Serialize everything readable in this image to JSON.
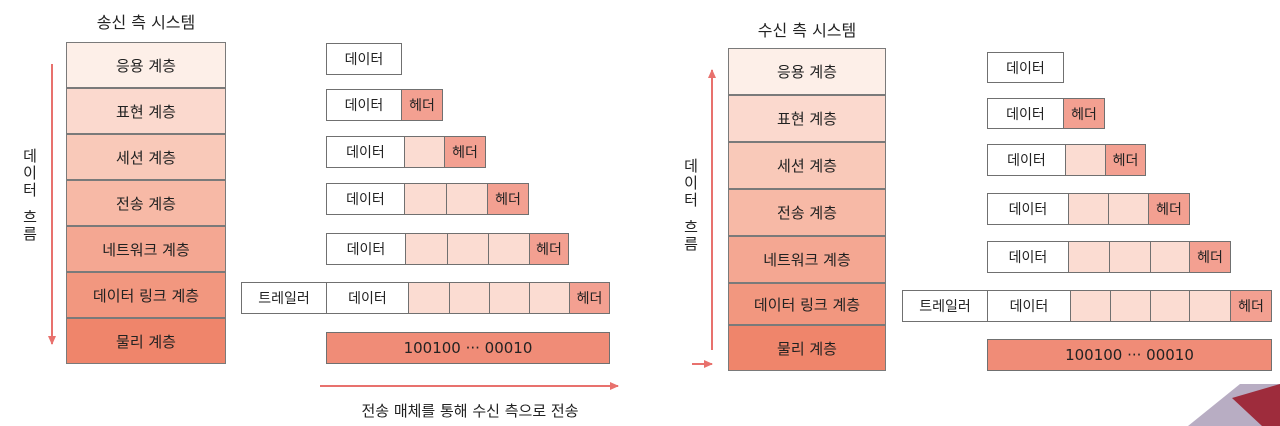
{
  "colors": {
    "layers": [
      "#fdefe8",
      "#fbd9ce",
      "#f9c9b9",
      "#f7b9a6",
      "#f4a792",
      "#f2977f",
      "#ef856b"
    ],
    "data_fill": "#ffffff",
    "header_fill": "#f3a091",
    "trailer_fill": "#ffffff",
    "bit_fill": "#f08c77",
    "arrow": "#e8716d",
    "corner_light": "#b8adc3",
    "corner_dark": "#9e2c3c"
  },
  "sender": {
    "title": "송신 측 시스템",
    "layers": [
      "응용 계층",
      "표현 계층",
      "세션 계층",
      "전송 계층",
      "네트워크 계층",
      "데이터 링크 계층",
      "물리 계층"
    ],
    "flow_label": [
      "데",
      "이",
      "터",
      "",
      "흐",
      "름"
    ]
  },
  "receiver": {
    "title": "수신 측 시스템",
    "layers": [
      "응용 계층",
      "표현 계층",
      "세션 계층",
      "전송 계층",
      "네트워크 계층",
      "데이터 링크 계층",
      "물리 계층"
    ],
    "flow_label": [
      "데",
      "이",
      "터",
      "",
      "흐",
      "름"
    ]
  },
  "packet": {
    "data_label": "데이터",
    "header_label": "헤더",
    "trailer_label": "트레일러",
    "bits": "100100 ··· 00010"
  },
  "caption": "전송 매체를 통해 수신 측으로 전송"
}
